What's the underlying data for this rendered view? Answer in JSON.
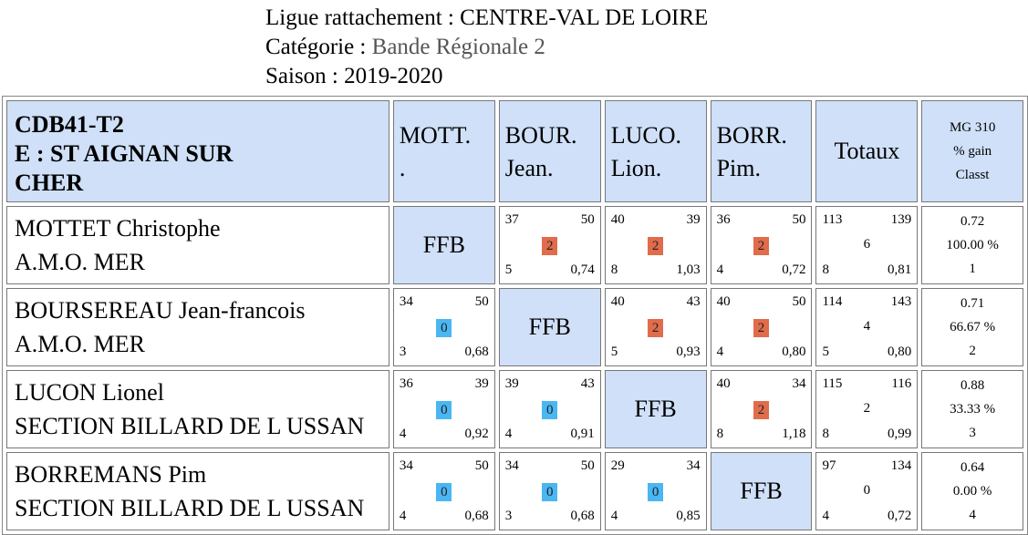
{
  "header": {
    "ligue_label": "Ligue rattachement : ",
    "ligue_value": "CENTRE-VAL DE LOIRE",
    "categorie_label": "Catégorie : ",
    "categorie_value": "Bande Régionale 2",
    "saison_label": "Saison : ",
    "saison_value": "2019-2020"
  },
  "table": {
    "team_code": "CDB41-T2",
    "team_name_1": "E : ST AIGNAN SUR",
    "team_name_2": "CHER",
    "columns": [
      {
        "l1": "MOTT.",
        "l2": "."
      },
      {
        "l1": "BOUR.",
        "l2": "Jean."
      },
      {
        "l1": "LUCO.",
        "l2": "Lion."
      },
      {
        "l1": "BORR.",
        "l2": "Pim."
      }
    ],
    "totaux_label": "Totaux",
    "mg_header": {
      "l1": "MG 310",
      "l2": "% gain",
      "l3": "Classt"
    },
    "ffb_label": "FFB",
    "rows": [
      {
        "name": "MOTTET Christophe",
        "club": "A.M.O. MER",
        "cells": [
          null,
          {
            "tl": "37",
            "tr": "50",
            "pts": "2",
            "res": "win",
            "bl": "5",
            "br": "0,74"
          },
          {
            "tl": "40",
            "tr": "39",
            "pts": "2",
            "res": "win",
            "bl": "8",
            "br": "1,03"
          },
          {
            "tl": "36",
            "tr": "50",
            "pts": "2",
            "res": "win",
            "bl": "4",
            "br": "0,72"
          }
        ],
        "totals": {
          "tl": "113",
          "tr": "139",
          "mid": "6",
          "bl": "8",
          "br": "0,81"
        },
        "mg": {
          "avg": "0.72",
          "pct": "100.00 %",
          "rank": "1"
        }
      },
      {
        "name": "BOURSEREAU Jean-francois",
        "club": "A.M.O. MER",
        "cells": [
          {
            "tl": "34",
            "tr": "50",
            "pts": "0",
            "res": "loss",
            "bl": "3",
            "br": "0,68"
          },
          null,
          {
            "tl": "40",
            "tr": "43",
            "pts": "2",
            "res": "win",
            "bl": "5",
            "br": "0,93"
          },
          {
            "tl": "40",
            "tr": "50",
            "pts": "2",
            "res": "win",
            "bl": "4",
            "br": "0,80"
          }
        ],
        "totals": {
          "tl": "114",
          "tr": "143",
          "mid": "4",
          "bl": "5",
          "br": "0,80"
        },
        "mg": {
          "avg": "0.71",
          "pct": "66.67 %",
          "rank": "2"
        }
      },
      {
        "name": "LUCON Lionel",
        "club": "SECTION BILLARD DE L USSAN",
        "cells": [
          {
            "tl": "36",
            "tr": "39",
            "pts": "0",
            "res": "loss",
            "bl": "4",
            "br": "0,92"
          },
          {
            "tl": "39",
            "tr": "43",
            "pts": "0",
            "res": "loss",
            "bl": "4",
            "br": "0,91"
          },
          null,
          {
            "tl": "40",
            "tr": "34",
            "pts": "2",
            "res": "win",
            "bl": "8",
            "br": "1,18"
          }
        ],
        "totals": {
          "tl": "115",
          "tr": "116",
          "mid": "2",
          "bl": "8",
          "br": "0,99"
        },
        "mg": {
          "avg": "0.88",
          "pct": "33.33 %",
          "rank": "3"
        }
      },
      {
        "name": "BORREMANS Pim",
        "club": "SECTION BILLARD DE L USSAN",
        "cells": [
          {
            "tl": "34",
            "tr": "50",
            "pts": "0",
            "res": "loss",
            "bl": "4",
            "br": "0,68"
          },
          {
            "tl": "34",
            "tr": "50",
            "pts": "0",
            "res": "loss",
            "bl": "3",
            "br": "0,68"
          },
          {
            "tl": "29",
            "tr": "34",
            "pts": "0",
            "res": "loss",
            "bl": "4",
            "br": "0,85"
          },
          null
        ],
        "totals": {
          "tl": "97",
          "tr": "134",
          "mid": "0",
          "bl": "4",
          "br": "0,72"
        },
        "mg": {
          "avg": "0.64",
          "pct": "0.00 %",
          "rank": "4"
        }
      }
    ],
    "colors": {
      "header_bg": "#cfe0f8",
      "win_badge": "#e06c4c",
      "loss_badge": "#4ab6f2"
    }
  }
}
